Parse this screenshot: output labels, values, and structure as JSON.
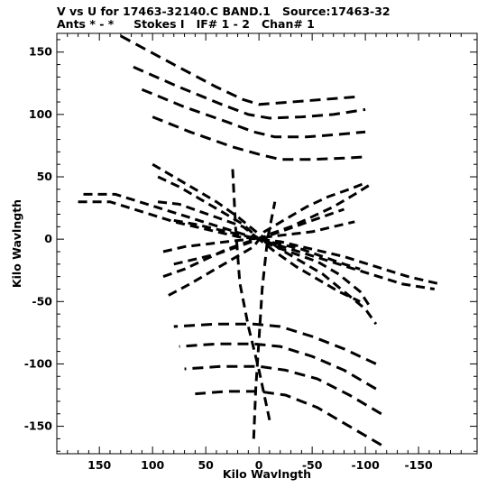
{
  "header": {
    "line1": "V vs U for 17463-32140.C BAND.1   Source:17463-32",
    "line2": "Ants * - *     Stokes I   IF# 1 - 2   Chan# 1"
  },
  "chart_data": {
    "type": "scatter",
    "title": "V vs U for 17463-32140.C BAND.1   Source:17463-32",
    "subtitle": "Ants * - *     Stokes I   IF# 1 - 2   Chan# 1",
    "xlabel": "Kilo Wavlngth",
    "ylabel": "Kilo Wavlngth",
    "xlim": [
      200,
      -200
    ],
    "ylim": [
      -170,
      170
    ],
    "xlim_shown": [
      190,
      -205
    ],
    "ylim_shown": [
      -172,
      165
    ],
    "x_inverted": true,
    "grid": false,
    "x_ticks": [
      150,
      100,
      50,
      0,
      -50,
      -100,
      -150
    ],
    "x_tick_labels": [
      "150",
      "100",
      "50",
      "0",
      "-50",
      "-100",
      "-150"
    ],
    "y_ticks": [
      150,
      100,
      50,
      0,
      -50,
      -100,
      -150
    ],
    "y_tick_labels": [
      "150",
      "100",
      "50",
      "0",
      "-50",
      "-100",
      "-150"
    ],
    "marker_color": "#000000",
    "tracks_description_free": true,
    "tracks": [
      {
        "u": [
          130,
          80,
          40,
          15,
          0,
          -30,
          -60,
          -90
        ],
        "v": [
          163,
          140,
          122,
          112,
          108,
          110,
          112,
          114
        ],
        "seg": 6
      },
      {
        "u": [
          118,
          75,
          35,
          10,
          -10,
          -40,
          -70,
          -100
        ],
        "v": [
          138,
          122,
          108,
          100,
          97,
          98,
          100,
          104
        ],
        "seg": 6
      },
      {
        "u": [
          110,
          70,
          30,
          5,
          -15,
          -45,
          -75,
          -100
        ],
        "v": [
          120,
          106,
          94,
          86,
          82,
          82,
          84,
          86
        ],
        "seg": 6
      },
      {
        "u": [
          100,
          65,
          25,
          0,
          -20,
          -50,
          -80,
          -100
        ],
        "v": [
          98,
          86,
          74,
          68,
          64,
          64,
          65,
          66
        ],
        "seg": 6
      },
      {
        "u": [
          -10,
          0,
          10,
          18,
          22,
          25
        ],
        "v": [
          -145,
          -105,
          -70,
          -35,
          10,
          60
        ],
        "seg": 5
      },
      {
        "u": [
          5,
          3,
          0,
          -3,
          -8,
          -15
        ],
        "v": [
          -160,
          -120,
          -80,
          -40,
          0,
          30
        ],
        "seg": 5
      },
      {
        "u": [
          -115,
          -85,
          -55,
          -25,
          0,
          30,
          60
        ],
        "v": [
          -165,
          -150,
          -135,
          -125,
          -122,
          -122,
          -124
        ],
        "seg": 6
      },
      {
        "u": [
          -115,
          -85,
          -55,
          -25,
          0,
          35,
          70
        ],
        "v": [
          -140,
          -125,
          -112,
          -105,
          -102,
          -102,
          -104
        ],
        "seg": 6
      },
      {
        "u": [
          -110,
          -80,
          -50,
          -20,
          5,
          40,
          75
        ],
        "v": [
          -120,
          -105,
          -94,
          -86,
          -84,
          -84,
          -86
        ],
        "seg": 6
      },
      {
        "u": [
          -110,
          -80,
          -50,
          -20,
          5,
          40,
          80
        ],
        "v": [
          -100,
          -88,
          -78,
          -70,
          -68,
          -68,
          -70
        ],
        "seg": 6
      },
      {
        "u": [
          170,
          140,
          110,
          80,
          50,
          20,
          0,
          -20,
          -50,
          -80,
          -110,
          -140,
          -170
        ],
        "v": [
          30,
          30,
          22,
          14,
          8,
          2,
          0,
          -2,
          -8,
          -14,
          -22,
          -30,
          -36
        ],
        "seg": 5
      },
      {
        "u": [
          165,
          135,
          105,
          75,
          45,
          15,
          0,
          -15,
          -45,
          -75,
          -105,
          -135,
          -165
        ],
        "v": [
          36,
          36,
          28,
          20,
          12,
          4,
          0,
          -4,
          -12,
          -20,
          -28,
          -36,
          -40
        ],
        "seg": 5
      },
      {
        "u": [
          100,
          80,
          60,
          40,
          20,
          0,
          -20,
          -40,
          -60,
          -80,
          -100,
          -110
        ],
        "v": [
          60,
          50,
          40,
          30,
          18,
          4,
          -8,
          -18,
          -28,
          -42,
          -56,
          -68
        ],
        "seg": 5
      },
      {
        "u": [
          95,
          75,
          55,
          35,
          15,
          0,
          -15,
          -35,
          -55,
          -75,
          -95,
          -105
        ],
        "v": [
          30,
          28,
          22,
          16,
          10,
          0,
          -6,
          -12,
          -18,
          -28,
          -42,
          -55
        ],
        "seg": 5
      },
      {
        "u": [
          90,
          70,
          50,
          30,
          10,
          0,
          -10,
          -30,
          -50,
          -70,
          -90,
          -105
        ],
        "v": [
          -30,
          -24,
          -16,
          -8,
          -2,
          0,
          4,
          10,
          18,
          26,
          36,
          44
        ],
        "seg": 5
      },
      {
        "u": [
          85,
          65,
          45,
          25,
          5,
          0,
          -5,
          -25,
          -45,
          -65,
          -85,
          -100
        ],
        "v": [
          -45,
          -36,
          -26,
          -16,
          -6,
          0,
          6,
          16,
          26,
          34,
          40,
          45
        ],
        "seg": 5
      },
      {
        "u": [
          80,
          60,
          40,
          20,
          0,
          -20,
          -40,
          -60,
          -80,
          -95
        ],
        "v": [
          15,
          12,
          8,
          4,
          0,
          -4,
          -8,
          -14,
          -20,
          -24
        ],
        "seg": 5
      },
      {
        "u": [
          90,
          70,
          50,
          30,
          10,
          -10,
          -30,
          -50,
          -70,
          -90
        ],
        "v": [
          -10,
          -6,
          -4,
          -2,
          0,
          2,
          4,
          6,
          10,
          14
        ],
        "seg": 5
      },
      {
        "u": [
          95,
          75,
          55,
          35,
          15,
          0,
          -15,
          -35,
          -55,
          -75,
          -95
        ],
        "v": [
          50,
          42,
          32,
          22,
          12,
          0,
          -10,
          -22,
          -32,
          -42,
          -50
        ],
        "seg": 5
      },
      {
        "u": [
          80,
          60,
          40,
          20,
          0,
          -20,
          -40,
          -60,
          -80
        ],
        "v": [
          -20,
          -16,
          -12,
          -6,
          0,
          6,
          12,
          18,
          24
        ],
        "seg": 5
      }
    ]
  }
}
